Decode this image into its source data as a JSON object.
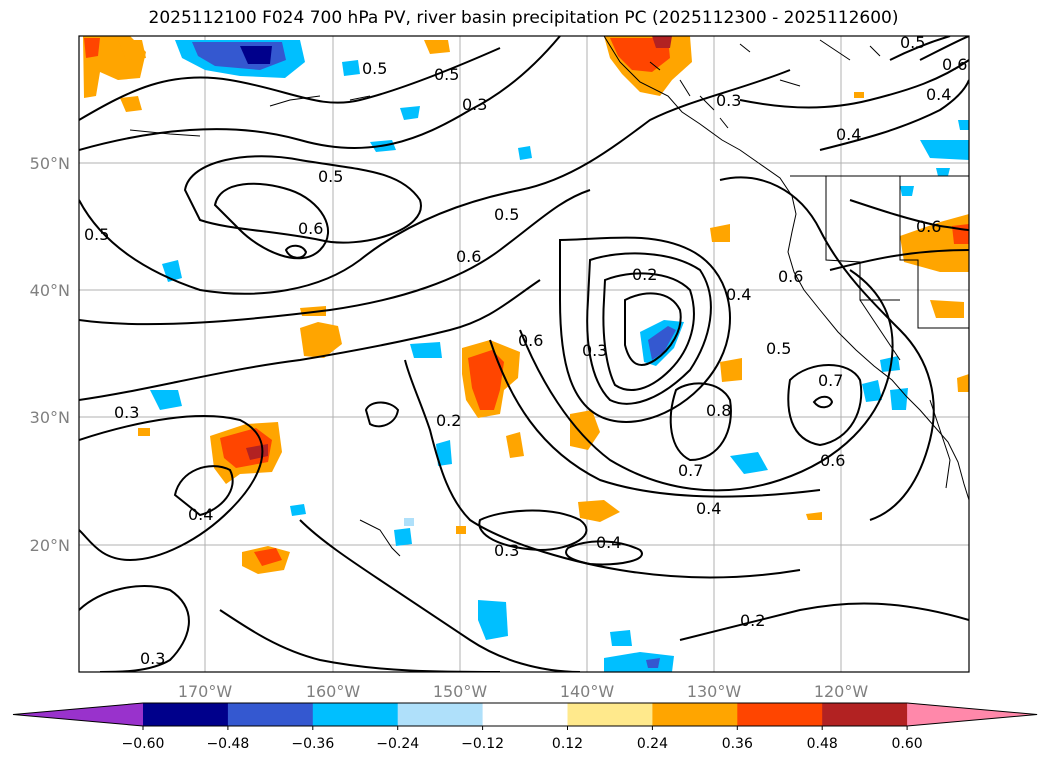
{
  "title": "2025112100 F024 700 hPa PV, river basin precipitation PC (2025112300 - 2025112600)",
  "lat_ticks": [
    "50°N",
    "40°N",
    "30°N",
    "20°N"
  ],
  "lon_ticks": [
    "170°W",
    "160°W",
    "150°W",
    "140°W",
    "130°W",
    "120°W"
  ],
  "colorbar": {
    "bounds": [
      "−0.60",
      "−0.48",
      "−0.36",
      "−0.24",
      "−0.12",
      "0.12",
      "0.24",
      "0.36",
      "0.48",
      "0.60"
    ],
    "colors": [
      "#9932cc",
      "#00008b",
      "#3458d0",
      "#00bfff",
      "#afe0fa",
      "#ffffff",
      "#ffe98c",
      "#ffa500",
      "#ff4500",
      "#b22222",
      "#ff88aa"
    ]
  },
  "contour_labels": [
    "0.5",
    "0.5",
    "0.6",
    "0.5",
    "0.6",
    "0.5",
    "0.3",
    "0.2",
    "0.4",
    "0.3",
    "0.6",
    "0.6",
    "0.5",
    "0.7",
    "0.6",
    "0.8",
    "0.7",
    "0.4",
    "0.4",
    "0.3",
    "0.2",
    "0.2",
    "0.4",
    "0.3",
    "0.3",
    "0.4",
    "0.6",
    "0.3",
    "0.5",
    "0.4",
    "0.6",
    "0.5"
  ]
}
